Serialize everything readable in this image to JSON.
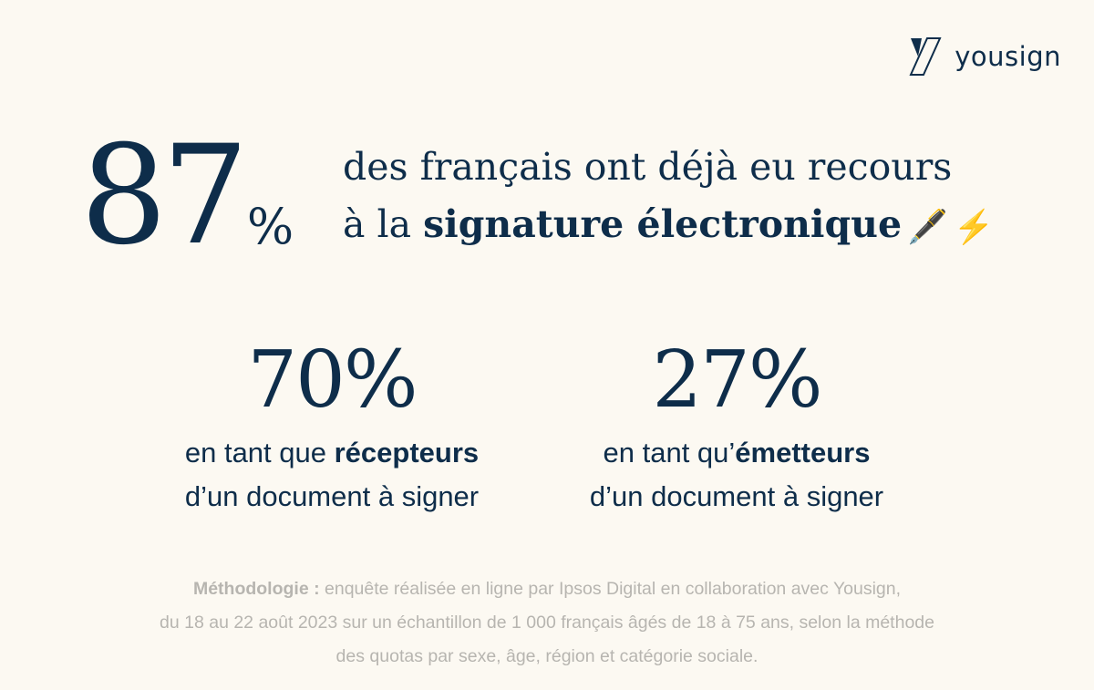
{
  "brand": {
    "name": "yousign"
  },
  "hero": {
    "number": "87",
    "percent_sign": "%",
    "line1": "des français ont déjà eu recours",
    "line2_prefix": "à la ",
    "line2_bold": "signature électronique",
    "emoji_pen": "🖋️",
    "emoji_bolt": "⚡"
  },
  "stats": [
    {
      "value": "70%",
      "line1_prefix": "en tant que ",
      "line1_bold": "récepteurs",
      "line2": "d’un document à signer"
    },
    {
      "value": "27%",
      "line1_prefix": "en tant qu’",
      "line1_bold": "émetteurs",
      "line2": "d’un document à signer"
    }
  ],
  "methodology": {
    "label": "Méthodologie :",
    "line1": " enquête réalisée en ligne par Ipsos Digital en collaboration avec Yousign,",
    "line2": "du 18 au 22 août 2023 sur un échantillon de 1 000 français âgés de 18 à 75 ans, selon la méthode",
    "line3": "des quotas par sexe, âge, région et catégorie sociale."
  }
}
